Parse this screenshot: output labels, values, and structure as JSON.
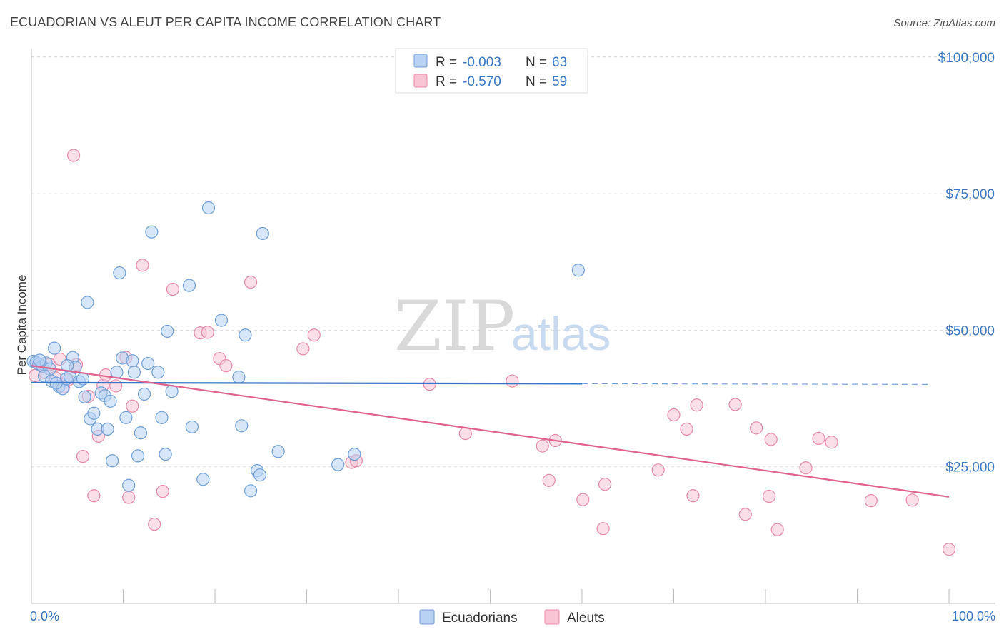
{
  "title": "ECUADORIAN VS ALEUT PER CAPITA INCOME CORRELATION CHART",
  "source": "Source: ZipAtlas.com",
  "watermark": {
    "zip": "ZIP",
    "atlas": "atlas"
  },
  "chart_data": {
    "type": "scatter",
    "ylabel": "Per Capita Income",
    "xlim": [
      0,
      100
    ],
    "ylim": [
      0,
      105000
    ],
    "x_tick_labels": [
      {
        "value": 0,
        "label": "0.0%"
      },
      {
        "value": 100,
        "label": "100.0%"
      }
    ],
    "y_ticks": [
      {
        "value": 25000,
        "label": "$25,000"
      },
      {
        "value": 50000,
        "label": "$50,000"
      },
      {
        "value": 75000,
        "label": "$75,000"
      },
      {
        "value": 100000,
        "label": "$100,000"
      }
    ],
    "legend_stats": [
      {
        "r_label": "R =",
        "r_value": "-0.003",
        "n_label": "N =",
        "n_value": "63"
      },
      {
        "r_label": "R =",
        "r_value": "-0.570",
        "n_label": "N =",
        "n_value": "59"
      }
    ],
    "colors": {
      "ecuadorian_fill": "#b7d2f3",
      "ecuadorian_stroke": "#6f9fd9",
      "ecuadorian_line": "#3a76c8",
      "aleut_fill": "#f8c5d5",
      "aleut_stroke": "#e88aa8",
      "aleut_line": "#e0628f"
    },
    "series": [
      {
        "name": "Ecuadorians",
        "trend": {
          "x0": 0,
          "y0": 40400,
          "x1": 60,
          "y1": 40200,
          "dash_to": 98
        },
        "points": [
          [
            0.2,
            44300
          ],
          [
            0.5,
            44100
          ],
          [
            0.8,
            43800
          ],
          [
            1.2,
            43400
          ],
          [
            1.6,
            44000
          ],
          [
            2.0,
            42900
          ],
          [
            2.5,
            46700
          ],
          [
            1.4,
            41600
          ],
          [
            2.2,
            40700
          ],
          [
            3.0,
            39700
          ],
          [
            3.4,
            39300
          ],
          [
            3.8,
            41100
          ],
          [
            4.2,
            41500
          ],
          [
            4.5,
            45000
          ],
          [
            4.8,
            43200
          ],
          [
            5.2,
            40600
          ],
          [
            5.6,
            41100
          ],
          [
            5.8,
            37800
          ],
          [
            6.1,
            55100
          ],
          [
            6.4,
            33800
          ],
          [
            6.8,
            34800
          ],
          [
            7.2,
            31900
          ],
          [
            7.6,
            38500
          ],
          [
            8.0,
            38000
          ],
          [
            8.3,
            31900
          ],
          [
            8.6,
            37000
          ],
          [
            8.8,
            26100
          ],
          [
            9.3,
            42300
          ],
          [
            9.6,
            60500
          ],
          [
            9.9,
            44900
          ],
          [
            10.3,
            34000
          ],
          [
            10.6,
            21600
          ],
          [
            11.0,
            44400
          ],
          [
            11.2,
            42300
          ],
          [
            11.6,
            27000
          ],
          [
            11.9,
            31200
          ],
          [
            12.3,
            38300
          ],
          [
            12.7,
            43900
          ],
          [
            13.1,
            68000
          ],
          [
            13.8,
            42300
          ],
          [
            14.2,
            34000
          ],
          [
            14.6,
            27300
          ],
          [
            14.8,
            49800
          ],
          [
            15.3,
            38800
          ],
          [
            17.2,
            58200
          ],
          [
            17.5,
            32300
          ],
          [
            18.7,
            22700
          ],
          [
            19.3,
            72400
          ],
          [
            20.7,
            51800
          ],
          [
            22.6,
            41400
          ],
          [
            22.9,
            32500
          ],
          [
            23.3,
            49100
          ],
          [
            23.9,
            20600
          ],
          [
            24.6,
            24300
          ],
          [
            24.9,
            23500
          ],
          [
            25.2,
            67700
          ],
          [
            26.9,
            27800
          ],
          [
            33.4,
            25400
          ],
          [
            35.2,
            27300
          ],
          [
            59.6,
            61000
          ],
          [
            0.9,
            44500
          ],
          [
            2.7,
            40300
          ],
          [
            3.9,
            43500
          ]
        ]
      },
      {
        "name": "Aleuts",
        "trend": {
          "x0": 0,
          "y0": 43500,
          "x1": 100,
          "y1": 19500
        },
        "points": [
          [
            0.4,
            41700
          ],
          [
            1.0,
            43600
          ],
          [
            1.5,
            42200
          ],
          [
            2.0,
            43700
          ],
          [
            2.6,
            41300
          ],
          [
            3.1,
            44700
          ],
          [
            3.5,
            39600
          ],
          [
            4.0,
            40900
          ],
          [
            4.6,
            82000
          ],
          [
            4.9,
            43700
          ],
          [
            5.6,
            26900
          ],
          [
            6.2,
            37900
          ],
          [
            6.8,
            19700
          ],
          [
            7.3,
            30600
          ],
          [
            7.8,
            39900
          ],
          [
            8.1,
            41800
          ],
          [
            9.2,
            39800
          ],
          [
            10.3,
            45000
          ],
          [
            10.6,
            19400
          ],
          [
            11.0,
            36100
          ],
          [
            12.1,
            61900
          ],
          [
            13.4,
            14500
          ],
          [
            14.3,
            20500
          ],
          [
            15.4,
            57500
          ],
          [
            18.4,
            49500
          ],
          [
            19.2,
            49600
          ],
          [
            20.5,
            44800
          ],
          [
            21.2,
            43500
          ],
          [
            23.9,
            58800
          ],
          [
            29.6,
            46600
          ],
          [
            30.8,
            49100
          ],
          [
            34.9,
            25800
          ],
          [
            35.4,
            26100
          ],
          [
            43.4,
            40100
          ],
          [
            47.3,
            31100
          ],
          [
            52.4,
            40700
          ],
          [
            55.7,
            28800
          ],
          [
            56.4,
            22500
          ],
          [
            57.1,
            29800
          ],
          [
            60.1,
            19000
          ],
          [
            62.3,
            13700
          ],
          [
            62.5,
            21800
          ],
          [
            68.3,
            24400
          ],
          [
            70.0,
            34500
          ],
          [
            71.4,
            31900
          ],
          [
            72.1,
            19700
          ],
          [
            72.5,
            36300
          ],
          [
            76.7,
            36400
          ],
          [
            77.8,
            16300
          ],
          [
            79.0,
            32100
          ],
          [
            80.4,
            19600
          ],
          [
            81.3,
            13500
          ],
          [
            84.4,
            24800
          ],
          [
            85.8,
            30200
          ],
          [
            87.2,
            29500
          ],
          [
            91.5,
            18800
          ],
          [
            96.0,
            18900
          ],
          [
            100.0,
            9900
          ],
          [
            80.6,
            30000
          ]
        ]
      }
    ]
  }
}
